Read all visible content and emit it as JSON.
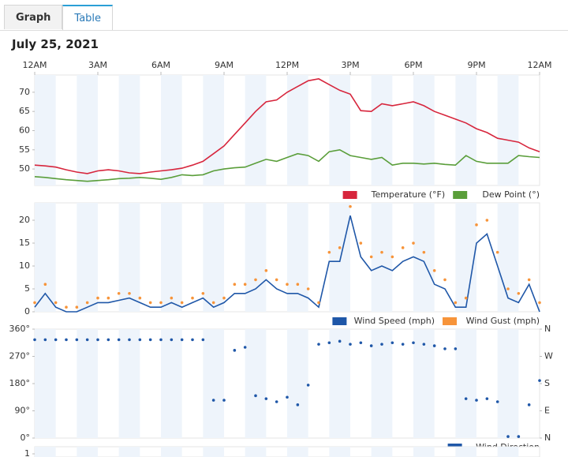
{
  "tabs": [
    "Graph",
    "Table"
  ],
  "date": "July 25, 2021",
  "chart_data": [
    {
      "type": "line",
      "x": [
        0,
        0.5,
        1,
        1.5,
        2,
        2.5,
        3,
        3.5,
        4,
        4.5,
        5,
        5.5,
        6,
        6.5,
        7,
        7.5,
        8,
        8.5,
        9,
        9.5,
        10,
        10.5,
        11,
        11.5,
        12,
        12.5,
        13,
        13.5,
        14,
        14.5,
        15,
        15.5,
        16,
        16.5,
        17,
        17.5,
        18,
        18.5,
        19,
        19.5,
        20,
        20.5,
        21,
        21.5,
        22,
        22.5,
        23,
        23.5,
        24
      ],
      "xlim": [
        0,
        24
      ],
      "xticks": [
        {
          "value": 0,
          "label": "12AM"
        },
        {
          "value": 3,
          "label": "3AM"
        },
        {
          "value": 6,
          "label": "6AM"
        },
        {
          "value": 9,
          "label": "9AM"
        },
        {
          "value": 12,
          "label": "12PM"
        },
        {
          "value": 15,
          "label": "3PM"
        },
        {
          "value": 18,
          "label": "6PM"
        },
        {
          "value": 21,
          "label": "9PM"
        },
        {
          "value": 24,
          "label": "12AM"
        }
      ],
      "ylim": [
        45.7,
        74.5
      ],
      "yticks": [
        50,
        55,
        60,
        65,
        70
      ],
      "series": [
        {
          "name": "Temperature (°F)",
          "color": "#d7263d",
          "values": [
            51,
            50.8,
            50.5,
            49.8,
            49.2,
            48.8,
            49.5,
            49.8,
            49.5,
            49,
            48.8,
            49.2,
            49.5,
            49.8,
            50.2,
            51,
            52,
            54,
            56,
            59,
            62,
            65,
            67.5,
            68,
            70,
            71.5,
            73,
            73.5,
            72,
            70.5,
            69.5,
            65.2,
            65,
            67,
            66.5,
            67,
            67.5,
            66.5,
            65,
            64,
            63,
            62,
            60.5,
            59.5,
            58,
            57.5,
            57,
            55.5,
            54.5
          ]
        },
        {
          "name": "Dew Point (°)",
          "color": "#5a9e3a",
          "values": [
            48,
            47.8,
            47.5,
            47.2,
            47,
            46.8,
            47,
            47.2,
            47.5,
            47.6,
            47.8,
            47.6,
            47.3,
            47.8,
            48.5,
            48.3,
            48.5,
            49.5,
            50,
            50.3,
            50.5,
            51.5,
            52.5,
            52,
            53,
            54,
            53.5,
            52,
            54.5,
            55,
            53.5,
            53,
            52.5,
            53,
            51,
            51.5,
            51.5,
            51.3,
            51.5,
            51.2,
            51,
            53.5,
            52,
            51.5,
            51.5,
            51.5,
            53.5,
            53.2,
            53
          ]
        }
      ]
    },
    {
      "type": "line",
      "x": [
        0,
        0.5,
        1,
        1.5,
        2,
        2.5,
        3,
        3.5,
        4,
        4.5,
        5,
        5.5,
        6,
        6.5,
        7,
        7.5,
        8,
        8.5,
        9,
        9.5,
        10,
        10.5,
        11,
        11.5,
        12,
        12.5,
        13,
        13.5,
        14,
        14.5,
        15,
        15.5,
        16,
        16.5,
        17,
        17.5,
        18,
        18.5,
        19,
        19.5,
        20,
        20.5,
        21,
        21.5,
        22,
        22.5,
        23,
        23.5,
        24
      ],
      "xlim": [
        0,
        24
      ],
      "ylim": [
        0,
        23.8
      ],
      "yticks": [
        0,
        5,
        10,
        15,
        20
      ],
      "series": [
        {
          "name": "Wind Speed (mph)",
          "color": "#1f57a8",
          "style": "line",
          "values": [
            1,
            4,
            1,
            0,
            0,
            1,
            2,
            2,
            2.5,
            3,
            2,
            1,
            1,
            2,
            1,
            2,
            3,
            1,
            2,
            4,
            4,
            5,
            7,
            5,
            4,
            4,
            3,
            1,
            11,
            11,
            21,
            12,
            9,
            10,
            9,
            11,
            12,
            11,
            6,
            5,
            1,
            1,
            15,
            17,
            10,
            3,
            2,
            6,
            0
          ]
        },
        {
          "name": "Wind Gust (mph)",
          "color": "#f7943a",
          "style": "markers",
          "values": [
            2,
            6,
            2,
            1,
            1,
            2,
            3,
            3,
            4,
            4,
            3,
            2,
            2,
            3,
            2,
            3,
            4,
            2,
            3,
            6,
            6,
            7,
            9,
            7,
            6,
            6,
            5,
            2,
            13,
            14,
            23,
            15,
            12,
            13,
            12,
            14,
            15,
            13,
            9,
            7,
            2,
            3,
            19,
            20,
            13,
            5,
            4,
            7,
            2
          ]
        }
      ]
    },
    {
      "type": "scatter",
      "x": [
        0,
        0.5,
        1,
        1.5,
        2,
        2.5,
        3,
        3.5,
        4,
        4.5,
        5,
        5.5,
        6,
        6.5,
        7,
        7.5,
        8,
        8.5,
        9,
        9.5,
        10,
        10.5,
        11,
        11.5,
        12,
        12.5,
        13,
        13.5,
        14,
        14.5,
        15,
        15.5,
        16,
        16.5,
        17,
        17.5,
        18,
        18.5,
        19,
        19.5,
        20,
        20.5,
        21,
        21.5,
        22,
        22.5,
        23,
        23.5,
        24
      ],
      "xlim": [
        0,
        24
      ],
      "ylim": [
        0,
        360
      ],
      "yticks": [
        {
          "value": 0,
          "label": "0°"
        },
        {
          "value": 90,
          "label": "90°"
        },
        {
          "value": 180,
          "label": "180°"
        },
        {
          "value": 270,
          "label": "270°"
        },
        {
          "value": 360,
          "label": "360°"
        }
      ],
      "y2ticks": [
        {
          "value": 0,
          "label": "N"
        },
        {
          "value": 90,
          "label": "E"
        },
        {
          "value": 180,
          "label": "S"
        },
        {
          "value": 270,
          "label": "W"
        },
        {
          "value": 360,
          "label": "N"
        }
      ],
      "series": [
        {
          "name": "Wind Direction",
          "color": "#1f57a8",
          "values": [
            325,
            325,
            325,
            325,
            325,
            325,
            325,
            325,
            325,
            325,
            325,
            325,
            325,
            325,
            325,
            325,
            325,
            125,
            125,
            290,
            300,
            140,
            130,
            120,
            135,
            110,
            175,
            310,
            315,
            320,
            310,
            315,
            305,
            310,
            315,
            310,
            315,
            310,
            305,
            295,
            295,
            130,
            125,
            130,
            120,
            5,
            5,
            110,
            190
          ]
        }
      ]
    },
    {
      "type": "line",
      "yticks": [
        1
      ]
    }
  ]
}
